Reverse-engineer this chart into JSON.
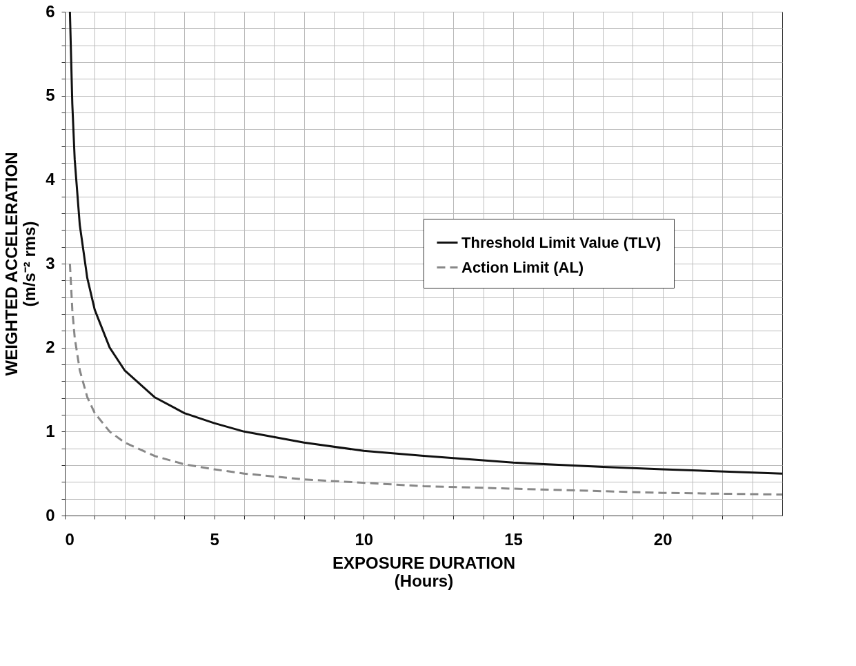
{
  "chart_data": {
    "type": "line",
    "xlabel": "EXPOSURE DURATION\n(Hours)",
    "ylabel": "WEIGHTED ACCELERATION\n(m/s⁻² rms)",
    "xlim": [
      0,
      24
    ],
    "ylim": [
      0,
      6
    ],
    "xticks": [
      0,
      {
        "value": 1,
        "label": null
      },
      {
        "value": 2,
        "label": null
      },
      {
        "value": 3,
        "label": null
      },
      {
        "value": 4,
        "label": null
      },
      5,
      {
        "value": 6,
        "label": null
      },
      {
        "value": 7,
        "label": null
      },
      {
        "value": 8,
        "label": null
      },
      {
        "value": 9,
        "label": null
      },
      10,
      {
        "value": 11,
        "label": null
      },
      {
        "value": 12,
        "label": null
      },
      {
        "value": 13,
        "label": null
      },
      {
        "value": 14,
        "label": null
      },
      15,
      {
        "value": 16,
        "label": null
      },
      {
        "value": 17,
        "label": null
      },
      {
        "value": 18,
        "label": null
      },
      {
        "value": 19,
        "label": null
      },
      20,
      {
        "value": 21,
        "label": null
      },
      {
        "value": 22,
        "label": null
      },
      {
        "value": 23,
        "label": null
      }
    ],
    "yticks": [
      0,
      {
        "value": 0.2,
        "label": null
      },
      {
        "value": 0.4,
        "label": null
      },
      {
        "value": 0.6,
        "label": null
      },
      {
        "value": 0.8,
        "label": null
      },
      1,
      {
        "value": 1.2,
        "label": null
      },
      {
        "value": 1.4,
        "label": null
      },
      {
        "value": 1.6,
        "label": null
      },
      {
        "value": 1.8,
        "label": null
      },
      2,
      {
        "value": 2.2,
        "label": null
      },
      {
        "value": 2.4,
        "label": null
      },
      {
        "value": 2.6,
        "label": null
      },
      {
        "value": 2.8,
        "label": null
      },
      3,
      {
        "value": 3.2,
        "label": null
      },
      {
        "value": 3.4,
        "label": null
      },
      {
        "value": 3.6,
        "label": null
      },
      {
        "value": 3.8,
        "label": null
      },
      4,
      {
        "value": 4.2,
        "label": null
      },
      {
        "value": 4.4,
        "label": null
      },
      {
        "value": 4.6,
        "label": null
      },
      {
        "value": 4.8,
        "label": null
      },
      5,
      {
        "value": 5.2,
        "label": null
      },
      {
        "value": 5.4,
        "label": null
      },
      {
        "value": 5.6,
        "label": null
      },
      {
        "value": 5.8,
        "label": null
      },
      6
    ],
    "grid": true,
    "legend": "right",
    "marker": "none",
    "series": [
      {
        "name": "Threshold Limit Value (TLV)",
        "color": "#111111",
        "line_style": "solid",
        "x": [
          0.17,
          0.25,
          0.33,
          0.5,
          0.75,
          1,
          1.5,
          2,
          3,
          4,
          5,
          6,
          8,
          10,
          12,
          15,
          18,
          20,
          24
        ],
        "values": [
          6,
          4.9,
          4.24,
          3.46,
          2.83,
          2.45,
          2.0,
          1.73,
          1.41,
          1.22,
          1.1,
          1.0,
          0.87,
          0.77,
          0.71,
          0.63,
          0.58,
          0.55,
          0.5
        ]
      },
      {
        "name": "Action Limit (AL)",
        "color": "#888888",
        "line_style": "dashed",
        "x": [
          0.17,
          0.25,
          0.33,
          0.5,
          0.75,
          1,
          1.5,
          2,
          3,
          4,
          5,
          6,
          8,
          10,
          12,
          15,
          18,
          20,
          24
        ],
        "values": [
          3,
          2.45,
          2.12,
          1.73,
          1.41,
          1.22,
          1.0,
          0.87,
          0.71,
          0.61,
          0.55,
          0.5,
          0.43,
          0.39,
          0.35,
          0.32,
          0.29,
          0.27,
          0.25
        ]
      }
    ]
  }
}
